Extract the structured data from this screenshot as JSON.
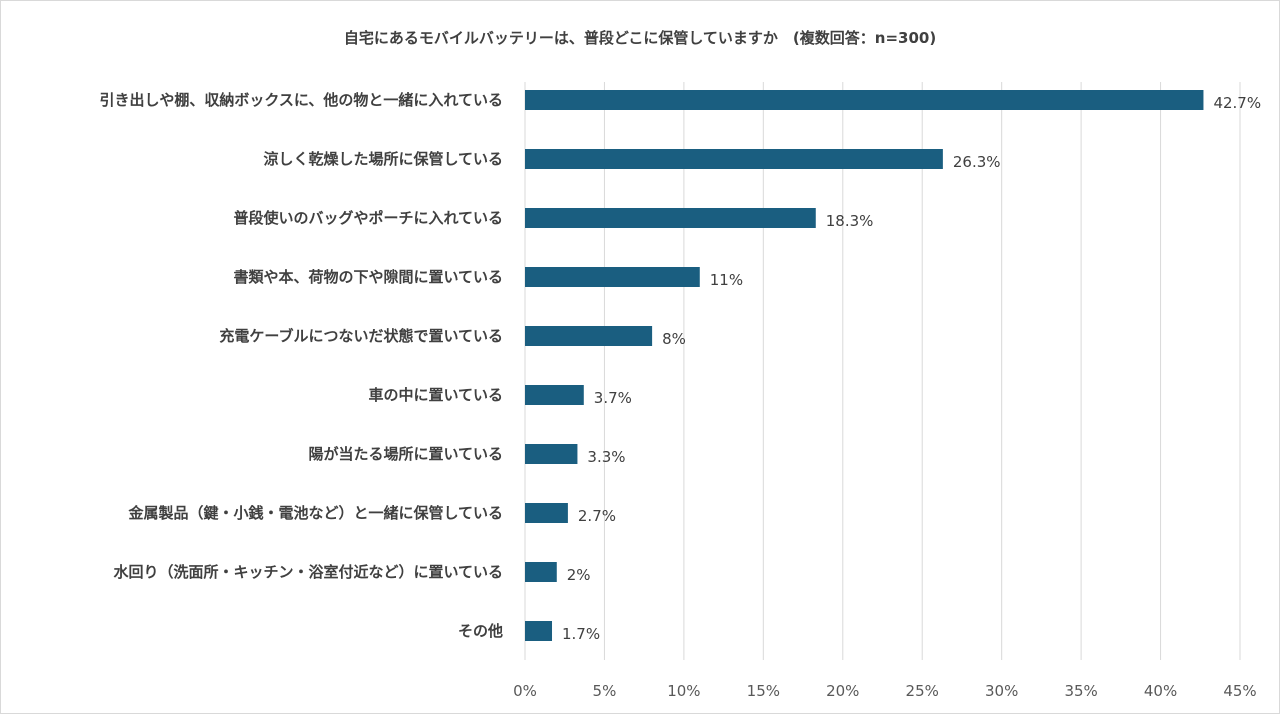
{
  "chart_data": {
    "type": "bar",
    "orientation": "horizontal",
    "title": "自宅にあるモバイルバッテリーは、普段どこに保管していますか　(複数回答：n=300)",
    "categories": [
      "引き出しや棚、収納ボックスに、他の物と一緒に入れている",
      "涼しく乾燥した場所に保管している",
      "普段使いのバッグやポーチに入れている",
      "書類や本、荷物の下や隙間に置いている",
      "充電ケーブルにつないだ状態で置いている",
      "車の中に置いている",
      "陽が当たる場所に置いている",
      "金属製品（鍵・小銭・電池など）と一緒に保管している",
      "水回り（洗面所・キッチン・浴室付近など）に置いている",
      "その他"
    ],
    "values": [
      42.7,
      26.3,
      18.3,
      11,
      8,
      3.7,
      3.3,
      2.7,
      2,
      1.7
    ],
    "data_labels": [
      "42.7%",
      "26.3%",
      "18.3%",
      "11%",
      "8%",
      "3.7%",
      "3.3%",
      "2.7%",
      "2%",
      "1.7%"
    ],
    "xlim": [
      0,
      45
    ],
    "x_ticks": [
      "0%",
      "5%",
      "10%",
      "15%",
      "20%",
      "25%",
      "30%",
      "35%",
      "40%",
      "45%"
    ],
    "xlabel": "",
    "ylabel": "",
    "grid": "vertical",
    "legend": "none",
    "colors": {
      "bar": "#1a5e80",
      "grid": "#d9d9d9",
      "text": "#404040"
    }
  }
}
